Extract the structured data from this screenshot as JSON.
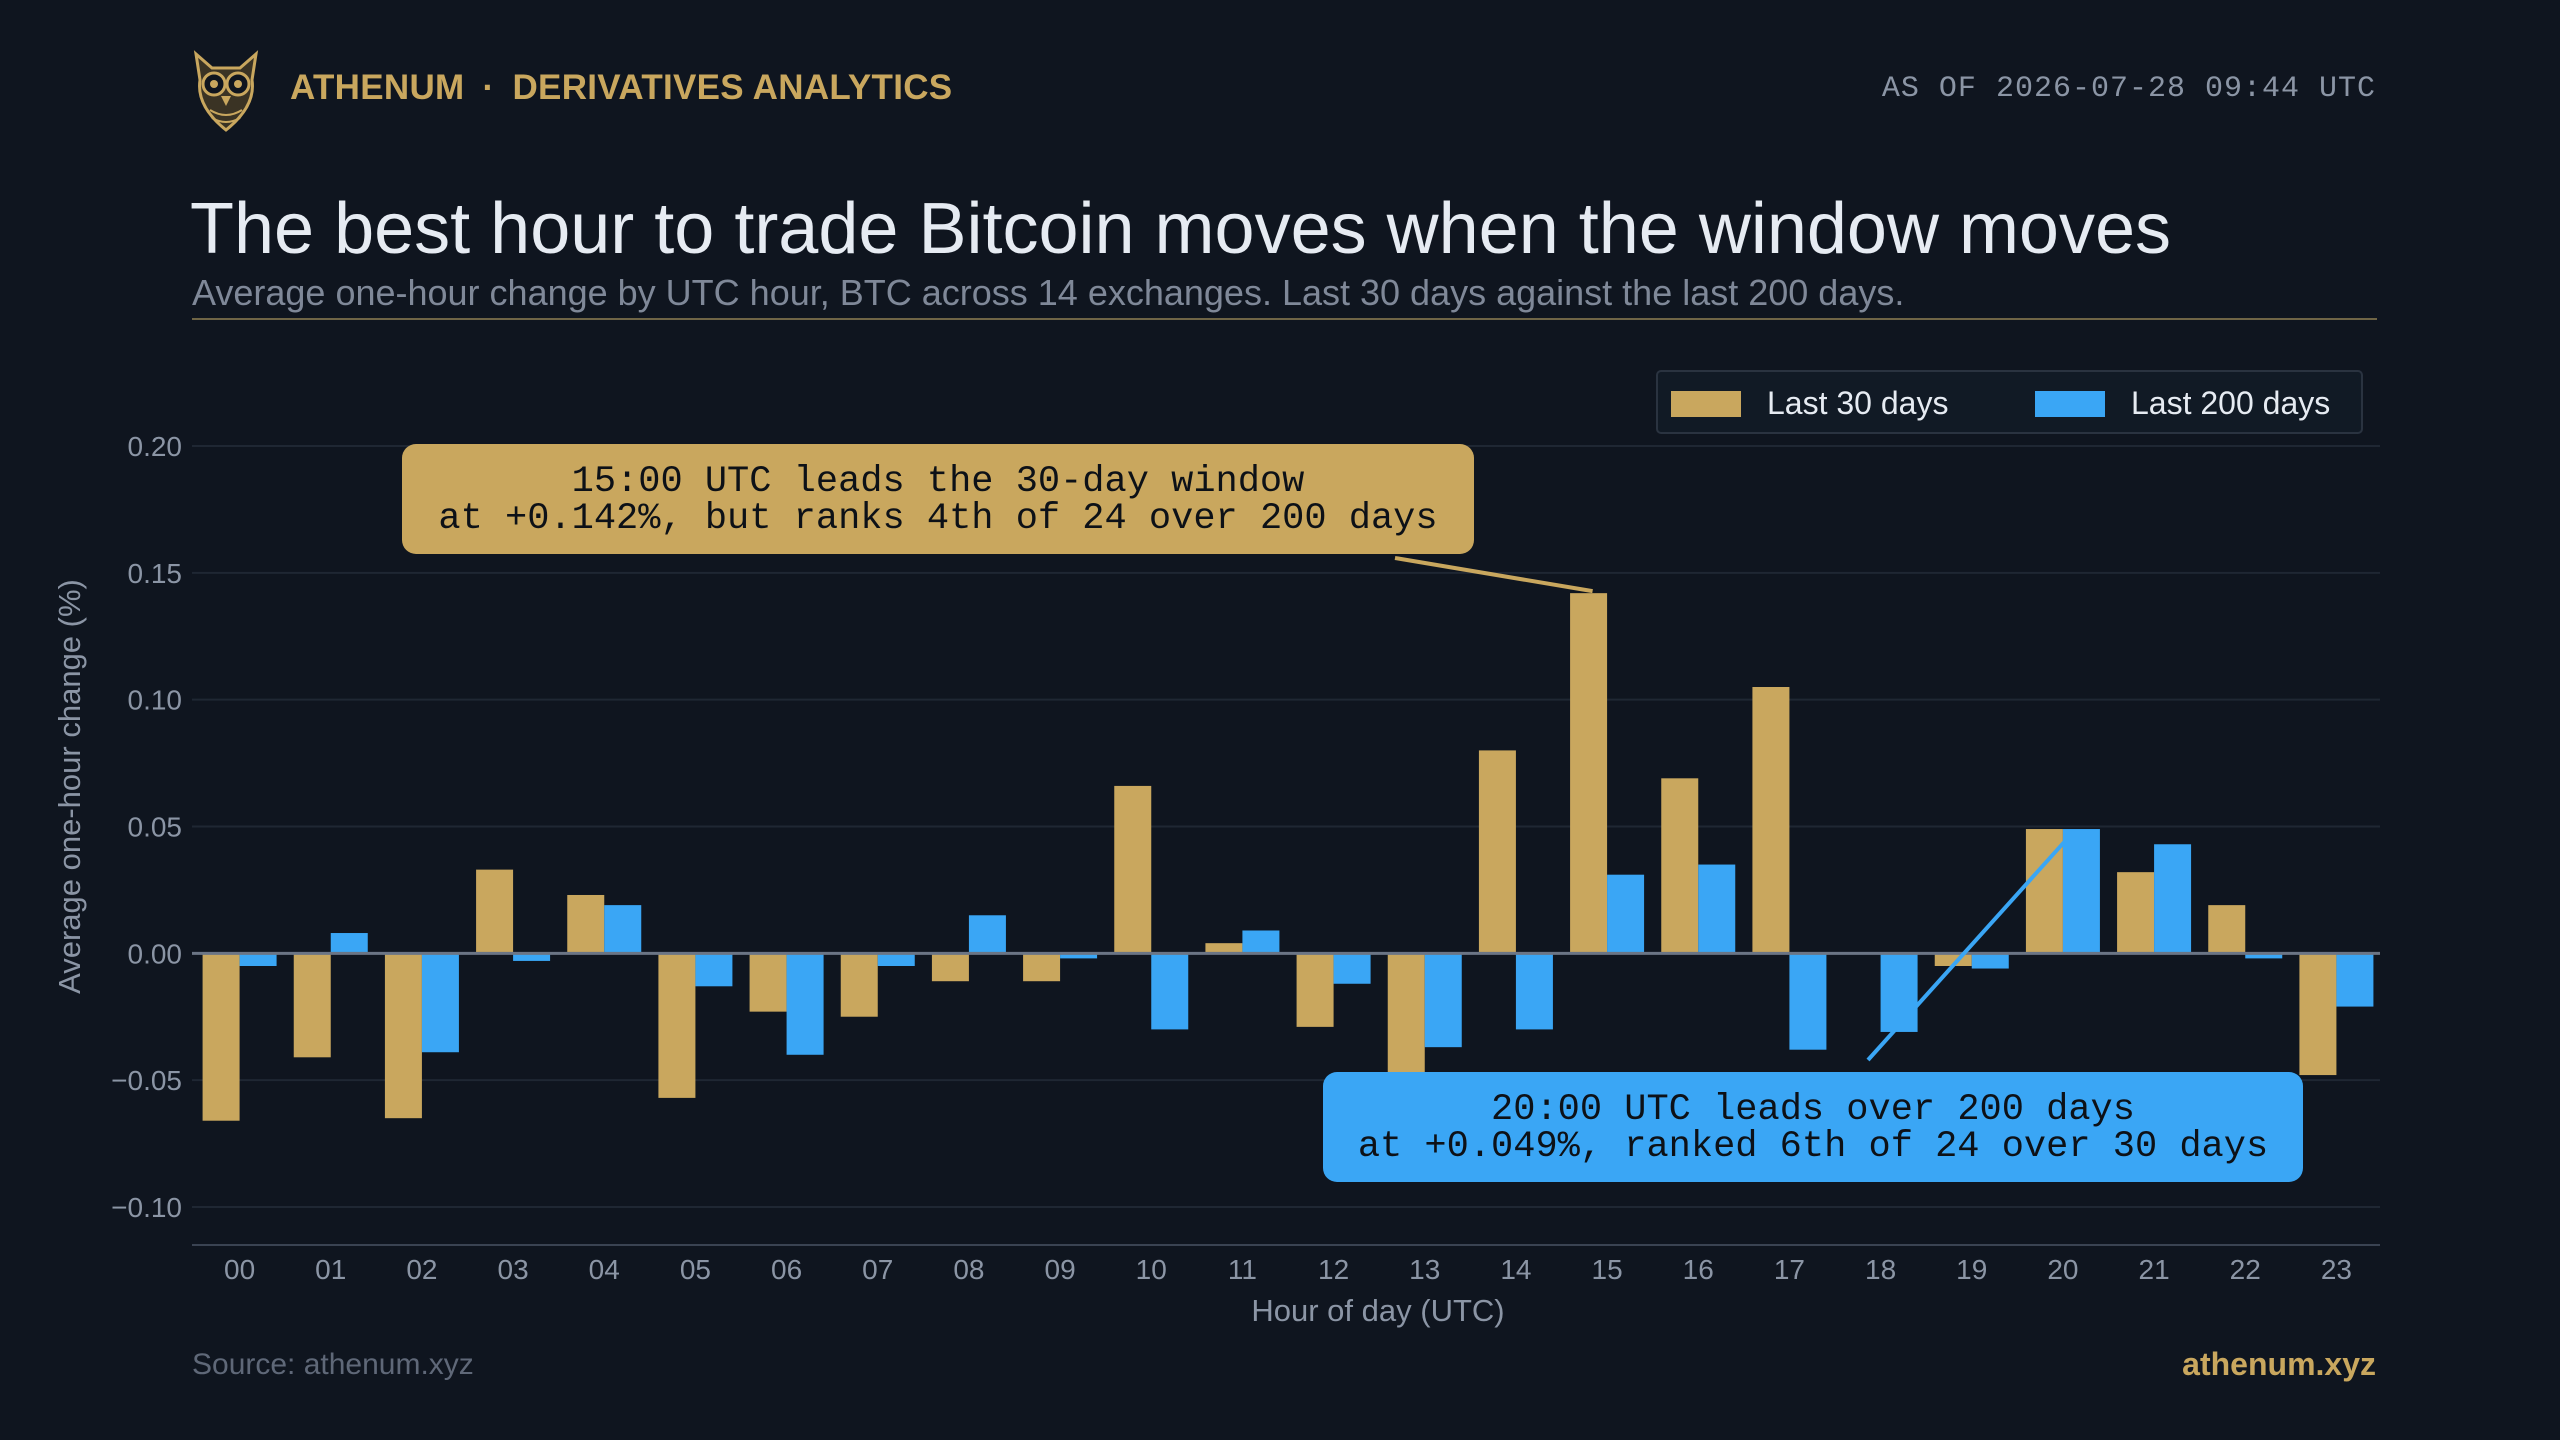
{
  "header": {
    "brand_name": "ATHENUM",
    "brand_separator": "·",
    "brand_section": "DERIVATIVES ANALYTICS",
    "as_of": "AS OF 2026-07-28 09:44 UTC"
  },
  "title": "The best hour to trade Bitcoin moves when the window moves",
  "subtitle": "Average one-hour change by UTC hour, BTC across 14 exchanges. Last 30 days against the last 200 days.",
  "footer": {
    "source": "Source: athenum.xyz",
    "site": "athenum.xyz"
  },
  "colors": {
    "background": "#0f151f",
    "gold": "#c9a75e",
    "blue": "#3aa6f5",
    "grid": "#1f2733",
    "zero_line": "#6b7585",
    "text_muted": "#8b95a5"
  },
  "chart_data": {
    "type": "bar",
    "xlabel": "Hour of day (UTC)",
    "ylabel": "Average one-hour change (%)",
    "ylim": [
      -0.115,
      0.215
    ],
    "y_ticks": [
      -0.1,
      -0.05,
      0.0,
      0.05,
      0.1,
      0.15,
      0.2
    ],
    "y_tick_labels": [
      "−0.10",
      "−0.05",
      "0.00",
      "0.05",
      "0.10",
      "0.15",
      "0.20"
    ],
    "grid": true,
    "legend_position": "top-right",
    "categories": [
      "00",
      "01",
      "02",
      "03",
      "04",
      "05",
      "06",
      "07",
      "08",
      "09",
      "10",
      "11",
      "12",
      "13",
      "14",
      "15",
      "16",
      "17",
      "18",
      "19",
      "20",
      "21",
      "22",
      "23"
    ],
    "series": [
      {
        "name": "Last 30 days",
        "color": "#c9a75e",
        "values": [
          -0.066,
          -0.041,
          -0.065,
          0.033,
          0.023,
          -0.057,
          -0.023,
          -0.025,
          -0.011,
          -0.011,
          0.066,
          0.004,
          -0.029,
          -0.049,
          0.08,
          0.142,
          0.069,
          0.105,
          0.0,
          -0.005,
          0.049,
          0.032,
          0.019,
          -0.048
        ]
      },
      {
        "name": "Last 200 days",
        "color": "#3aa6f5",
        "values": [
          -0.005,
          0.008,
          -0.039,
          -0.003,
          0.019,
          -0.013,
          -0.04,
          -0.005,
          0.015,
          -0.002,
          -0.03,
          0.009,
          -0.012,
          -0.037,
          -0.03,
          0.031,
          0.035,
          -0.038,
          -0.031,
          -0.006,
          0.049,
          0.043,
          -0.002,
          -0.021
        ]
      }
    ],
    "annotations": [
      {
        "line1": "15:00 UTC leads the 30-day window",
        "line2": "at +0.142%, but ranks 4th of 24 over 200 days",
        "color": "#c9a75e",
        "target_category": "15",
        "target_series": 0
      },
      {
        "line1": "20:00 UTC leads over 200 days",
        "line2": "at +0.049%, ranked 6th of 24 over 30 days",
        "color": "#3aa6f5",
        "target_category": "20",
        "target_series": 1
      }
    ]
  }
}
